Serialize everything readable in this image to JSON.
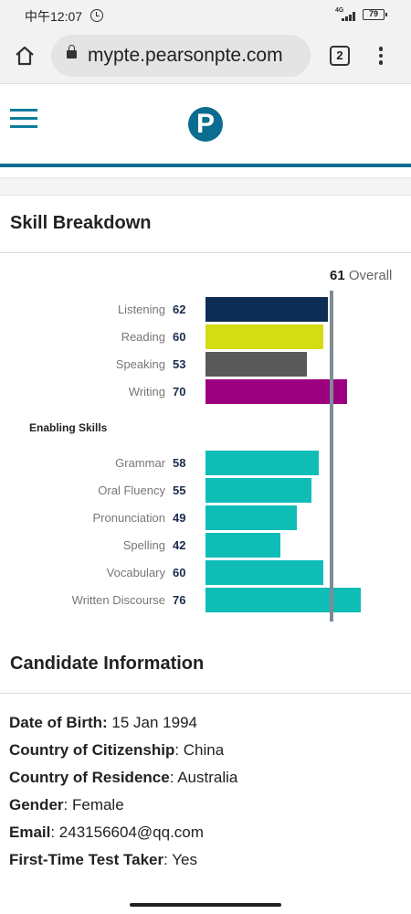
{
  "status_bar": {
    "time": "中午12:07",
    "network": "4G",
    "battery": "79",
    "icons": [
      "alarm-icon",
      "signal-icon",
      "battery-icon"
    ]
  },
  "browser": {
    "url": "mypte.pearsonpte.com",
    "tab_count": "2",
    "icons": [
      "home-icon",
      "lock-icon",
      "tabs-icon",
      "menu-dots-icon"
    ]
  },
  "header": {
    "logo_letter": "P",
    "icons": [
      "hamburger-icon",
      "pearson-logo"
    ],
    "accent_color": "#0b6d8f"
  },
  "skill_breakdown": {
    "title": "Skill Breakdown",
    "overall_score": "61",
    "overall_label": "Overall",
    "enabling_title": "Enabling Skills"
  },
  "chart_data": {
    "type": "bar",
    "orientation": "horizontal",
    "xlim": [
      10,
      90
    ],
    "overall": 61,
    "groups": [
      {
        "name": "",
        "items": [
          {
            "label": "Listening",
            "value": 62,
            "color": "#0d2d55"
          },
          {
            "label": "Reading",
            "value": 60,
            "color": "#d4dc12"
          },
          {
            "label": "Speaking",
            "value": 53,
            "color": "#595959"
          },
          {
            "label": "Writing",
            "value": 70,
            "color": "#9c0080"
          }
        ]
      },
      {
        "name": "Enabling Skills",
        "items": [
          {
            "label": "Grammar",
            "value": 58,
            "color": "#0fbdb7"
          },
          {
            "label": "Oral Fluency",
            "value": 55,
            "color": "#0fbdb7"
          },
          {
            "label": "Pronunciation",
            "value": 49,
            "color": "#0fbdb7"
          },
          {
            "label": "Spelling",
            "value": 42,
            "color": "#0fbdb7"
          },
          {
            "label": "Vocabulary",
            "value": 60,
            "color": "#0fbdb7"
          },
          {
            "label": "Written Discourse",
            "value": 76,
            "color": "#0fbdb7"
          }
        ]
      }
    ]
  },
  "candidate": {
    "title": "Candidate Information",
    "fields": [
      {
        "label": "Date of Birth:",
        "value": " 15 Jan 1994"
      },
      {
        "label": "Country of Citizenship",
        "value": ": China"
      },
      {
        "label": "Country of Residence",
        "value": ": Australia"
      },
      {
        "label": "Gender",
        "value": ": Female"
      },
      {
        "label": "Email",
        "value": ": 243156604@qq.com"
      },
      {
        "label": "First-Time Test Taker",
        "value": ": Yes"
      }
    ]
  }
}
